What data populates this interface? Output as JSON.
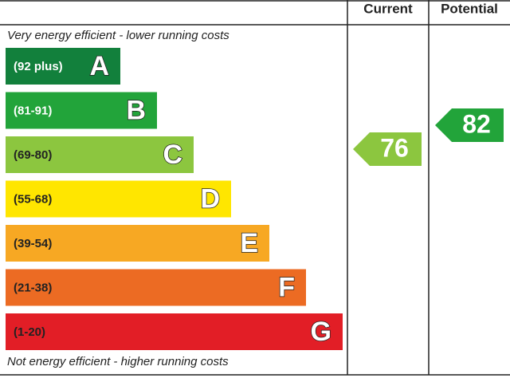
{
  "header": {
    "current": "Current",
    "potential": "Potential"
  },
  "top_note": "Very energy efficient - lower running costs",
  "bottom_note": "Not energy efficient - higher running costs",
  "bands": [
    {
      "range": "(92 plus)",
      "letter": "A",
      "color": "#12803c"
    },
    {
      "range": "(81-91)",
      "letter": "B",
      "color": "#22a43a"
    },
    {
      "range": "(69-80)",
      "letter": "C",
      "color": "#8cc63f"
    },
    {
      "range": "(55-68)",
      "letter": "D",
      "color": "#ffe600"
    },
    {
      "range": "(39-54)",
      "letter": "E",
      "color": "#f7a823"
    },
    {
      "range": "(21-38)",
      "letter": "F",
      "color": "#ec6b23"
    },
    {
      "range": "(1-20)",
      "letter": "G",
      "color": "#e21e26"
    }
  ],
  "current": {
    "value": 76,
    "color": "#8cc63f"
  },
  "potential": {
    "value": 82,
    "color": "#22a43a"
  }
}
